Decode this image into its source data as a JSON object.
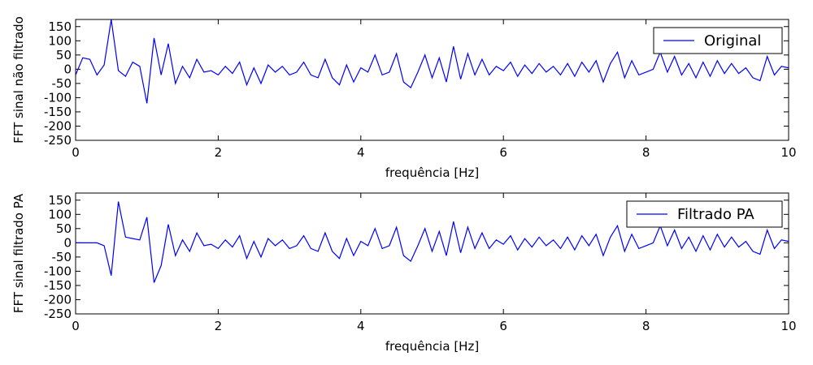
{
  "chart_data": [
    {
      "type": "line",
      "xlabel": "frequência [Hz]",
      "ylabel": "FFT sinal não filtrado",
      "xlim": [
        0,
        10
      ],
      "xticks": [
        0,
        2,
        4,
        6,
        8,
        10
      ],
      "ylim": [
        -250,
        175
      ],
      "yticks": [
        -250,
        -200,
        -150,
        -100,
        -50,
        0,
        50,
        100,
        150
      ],
      "legend": "upper right",
      "x": [
        0,
        0.1,
        0.2,
        0.3,
        0.4,
        0.5,
        0.6,
        0.7,
        0.8,
        0.9,
        1,
        1.1,
        1.2,
        1.3,
        1.4,
        1.5,
        1.6,
        1.7,
        1.8,
        1.9,
        2,
        2.1,
        2.2,
        2.3,
        2.4,
        2.5,
        2.6,
        2.7,
        2.8,
        2.9,
        3,
        3.1,
        3.2,
        3.3,
        3.4,
        3.5,
        3.6,
        3.7,
        3.8,
        3.9,
        4,
        4.1,
        4.2,
        4.3,
        4.4,
        4.5,
        4.6,
        4.7,
        4.8,
        4.9,
        5,
        5.1,
        5.2,
        5.3,
        5.4,
        5.5,
        5.6,
        5.7,
        5.8,
        5.9,
        6,
        6.1,
        6.2,
        6.3,
        6.4,
        6.5,
        6.6,
        6.7,
        6.8,
        6.9,
        7,
        7.1,
        7.2,
        7.3,
        7.4,
        7.5,
        7.6,
        7.7,
        7.8,
        7.9,
        8,
        8.1,
        8.2,
        8.3,
        8.4,
        8.5,
        8.6,
        8.7,
        8.8,
        8.9,
        9,
        9.1,
        9.2,
        9.3,
        9.4,
        9.5,
        9.6,
        9.7,
        9.8,
        9.9,
        10
      ],
      "series": [
        {
          "name": "Original",
          "color": "#0000ff",
          "values": [
            -20,
            40,
            35,
            -20,
            15,
            175,
            -5,
            -25,
            25,
            10,
            -120,
            110,
            -20,
            90,
            -50,
            10,
            -30,
            35,
            -10,
            -5,
            -20,
            10,
            -15,
            25,
            -55,
            5,
            -50,
            15,
            -10,
            10,
            -20,
            -10,
            25,
            -20,
            -30,
            35,
            -30,
            -55,
            15,
            -45,
            5,
            -10,
            50,
            -20,
            -10,
            55,
            -45,
            -65,
            -10,
            50,
            -30,
            40,
            -45,
            80,
            -35,
            55,
            -20,
            35,
            -20,
            10,
            -5,
            25,
            -25,
            15,
            -15,
            20,
            -10,
            10,
            -20,
            20,
            -25,
            25,
            -10,
            30,
            -45,
            20,
            60,
            -30,
            30,
            -20,
            -10,
            0,
            60,
            -10,
            45,
            -20,
            20,
            -30,
            25,
            -25,
            30,
            -15,
            20,
            -15,
            5,
            -30,
            -40,
            45,
            -20,
            10,
            5
          ]
        }
      ]
    },
    {
      "type": "line",
      "xlabel": "frequência [Hz]",
      "ylabel": "FFT sinal filtrado PA",
      "xlim": [
        0,
        10
      ],
      "xticks": [
        0,
        2,
        4,
        6,
        8,
        10
      ],
      "ylim": [
        -250,
        175
      ],
      "yticks": [
        -250,
        -200,
        -150,
        -100,
        -50,
        0,
        50,
        100,
        150
      ],
      "legend": "upper right",
      "x": [
        0,
        0.1,
        0.2,
        0.3,
        0.4,
        0.5,
        0.6,
        0.7,
        0.8,
        0.9,
        1,
        1.1,
        1.2,
        1.3,
        1.4,
        1.5,
        1.6,
        1.7,
        1.8,
        1.9,
        2,
        2.1,
        2.2,
        2.3,
        2.4,
        2.5,
        2.6,
        2.7,
        2.8,
        2.9,
        3,
        3.1,
        3.2,
        3.3,
        3.4,
        3.5,
        3.6,
        3.7,
        3.8,
        3.9,
        4,
        4.1,
        4.2,
        4.3,
        4.4,
        4.5,
        4.6,
        4.7,
        4.8,
        4.9,
        5,
        5.1,
        5.2,
        5.3,
        5.4,
        5.5,
        5.6,
        5.7,
        5.8,
        5.9,
        6,
        6.1,
        6.2,
        6.3,
        6.4,
        6.5,
        6.6,
        6.7,
        6.8,
        6.9,
        7,
        7.1,
        7.2,
        7.3,
        7.4,
        7.5,
        7.6,
        7.7,
        7.8,
        7.9,
        8,
        8.1,
        8.2,
        8.3,
        8.4,
        8.5,
        8.6,
        8.7,
        8.8,
        8.9,
        9,
        9.1,
        9.2,
        9.3,
        9.4,
        9.5,
        9.6,
        9.7,
        9.8,
        9.9,
        10
      ],
      "series": [
        {
          "name": "Filtrado PA",
          "color": "#0000ff",
          "values": [
            0,
            0,
            0,
            0,
            -10,
            -115,
            145,
            20,
            15,
            10,
            90,
            -140,
            -80,
            65,
            -45,
            10,
            -30,
            35,
            -10,
            -5,
            -20,
            10,
            -15,
            25,
            -55,
            5,
            -50,
            15,
            -10,
            10,
            -20,
            -10,
            25,
            -20,
            -30,
            35,
            -30,
            -55,
            15,
            -45,
            5,
            -10,
            50,
            -20,
            -10,
            55,
            -45,
            -65,
            -10,
            50,
            -30,
            40,
            -45,
            75,
            -35,
            55,
            -20,
            35,
            -20,
            10,
            -5,
            25,
            -25,
            15,
            -15,
            20,
            -10,
            10,
            -20,
            20,
            -25,
            25,
            -10,
            30,
            -45,
            20,
            60,
            -30,
            30,
            -20,
            -10,
            0,
            60,
            -10,
            45,
            -20,
            20,
            -30,
            25,
            -25,
            30,
            -15,
            20,
            -15,
            5,
            -30,
            -40,
            45,
            -20,
            10,
            5
          ]
        }
      ]
    }
  ]
}
